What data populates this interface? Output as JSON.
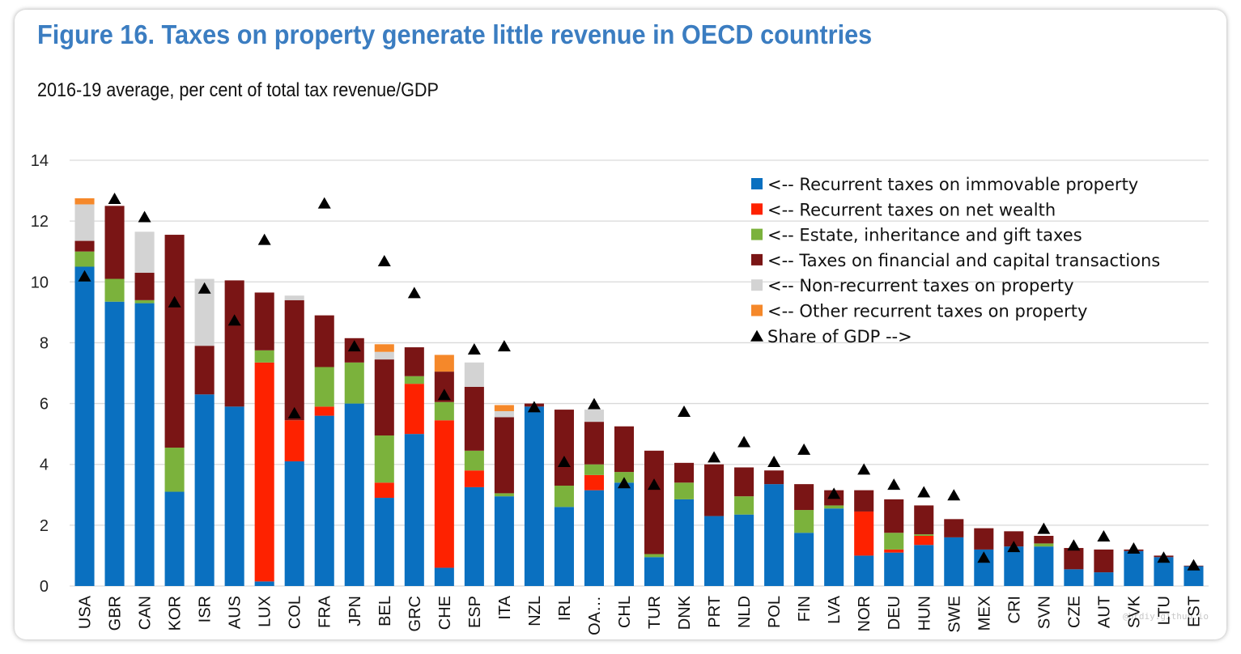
{
  "figure": {
    "title": "Figure 16. Taxes on property generate little revenue in OECD countries",
    "subtitle": "2016-19 average, per cent of total tax revenue/GDP",
    "watermark": "@brdiy.github.io"
  },
  "chart_data": {
    "type": "bar",
    "stacked": true,
    "ylim": [
      0,
      14
    ],
    "yticks": [
      0,
      2,
      4,
      6,
      8,
      10,
      12,
      14
    ],
    "grid": true,
    "legend_position": "top-right",
    "categories": [
      "USA",
      "GBR",
      "CAN",
      "KOR",
      "ISR",
      "AUS",
      "LUX",
      "COL",
      "FRA",
      "JPN",
      "BEL",
      "GRC",
      "CHE",
      "ESP",
      "ITA",
      "NZL",
      "IRL",
      "OA…",
      "CHL",
      "TUR",
      "DNK",
      "PRT",
      "NLD",
      "POL",
      "FIN",
      "LVA",
      "NOR",
      "DEU",
      "HUN",
      "SWE",
      "MEX",
      "CRI",
      "SVN",
      "CZE",
      "AUT",
      "SVK",
      "LTU",
      "EST"
    ],
    "series": [
      {
        "name": "<-- Recurrent taxes on immovable property",
        "color": "#0a70c0",
        "values": [
          10.5,
          9.35,
          9.3,
          3.1,
          6.3,
          5.9,
          0.15,
          4.1,
          5.6,
          6.0,
          2.9,
          5.0,
          0.6,
          3.25,
          2.95,
          5.9,
          2.6,
          3.15,
          3.4,
          0.95,
          2.85,
          2.3,
          2.35,
          3.35,
          1.75,
          2.55,
          1.0,
          1.1,
          1.35,
          1.6,
          1.2,
          1.3,
          1.3,
          0.55,
          0.45,
          1.15,
          0.95,
          0.65
        ]
      },
      {
        "name": "<-- Recurrent taxes on net wealth",
        "color": "#fe2200",
        "values": [
          0,
          0,
          0,
          0,
          0,
          0,
          7.2,
          1.35,
          0.3,
          0,
          0.5,
          1.65,
          4.85,
          0.55,
          0,
          0,
          0,
          0.5,
          0,
          0,
          0,
          0,
          0,
          0,
          0,
          0,
          1.45,
          0.1,
          0.3,
          0,
          0,
          0,
          0,
          0,
          0,
          0,
          0,
          0
        ]
      },
      {
        "name": "<-- Estate, inheritance and gift taxes",
        "color": "#7bb23c",
        "values": [
          0.5,
          0.75,
          0.1,
          1.45,
          0,
          0,
          0.4,
          0,
          1.3,
          1.35,
          1.55,
          0.25,
          0.6,
          0.65,
          0.1,
          0,
          0.7,
          0.35,
          0.35,
          0.1,
          0.55,
          0,
          0.6,
          0,
          0.75,
          0.1,
          0,
          0.55,
          0.05,
          0,
          0,
          0,
          0.1,
          0,
          0,
          0,
          0,
          0
        ]
      },
      {
        "name": "<-- Taxes on financial and capital transactions",
        "color": "#7a1515",
        "values": [
          0.35,
          2.4,
          0.9,
          7.0,
          1.6,
          4.15,
          1.9,
          3.95,
          1.7,
          0.8,
          2.5,
          0.95,
          1.0,
          2.1,
          2.5,
          0.1,
          2.5,
          1.4,
          1.5,
          3.4,
          0.65,
          1.7,
          0.95,
          0.45,
          0.85,
          0.5,
          0.7,
          1.1,
          0.95,
          0.6,
          0.7,
          0.5,
          0.25,
          0.7,
          0.75,
          0.05,
          0.05,
          0.02
        ]
      },
      {
        "name": "<-- Non-recurrent taxes on property",
        "color": "#d3d3d3",
        "values": [
          1.2,
          0,
          1.35,
          0,
          2.2,
          0,
          0,
          0.15,
          0,
          0,
          0.25,
          0,
          0,
          0.8,
          0.2,
          0,
          0,
          0.4,
          0,
          0,
          0,
          0,
          0,
          0,
          0,
          0,
          0,
          0,
          0,
          0,
          0,
          0,
          0,
          0,
          0,
          0,
          0,
          0
        ]
      },
      {
        "name": "<-- Other recurrent taxes on property",
        "color": "#f5882a",
        "values": [
          0.2,
          0,
          0,
          0,
          0,
          0,
          0,
          0,
          0,
          0,
          0.25,
          0,
          0.55,
          0,
          0.2,
          0,
          0,
          0,
          0,
          0,
          0,
          0,
          0,
          0,
          0,
          0,
          0,
          0,
          0,
          0,
          0,
          0,
          0,
          0,
          0,
          0,
          0,
          0
        ]
      }
    ],
    "markers": {
      "name": "Share of GDP -->",
      "color": "#000000",
      "values": [
        10.2,
        12.75,
        12.15,
        9.35,
        9.8,
        8.75,
        11.4,
        5.7,
        12.6,
        7.9,
        10.7,
        9.65,
        6.3,
        7.8,
        7.9,
        5.9,
        4.1,
        6.0,
        3.4,
        3.35,
        5.75,
        4.25,
        4.75,
        4.1,
        4.5,
        3.05,
        3.85,
        3.35,
        3.1,
        3.0,
        0.95,
        1.3,
        1.9,
        1.35,
        1.65,
        1.25,
        0.95,
        0.7
      ]
    }
  }
}
